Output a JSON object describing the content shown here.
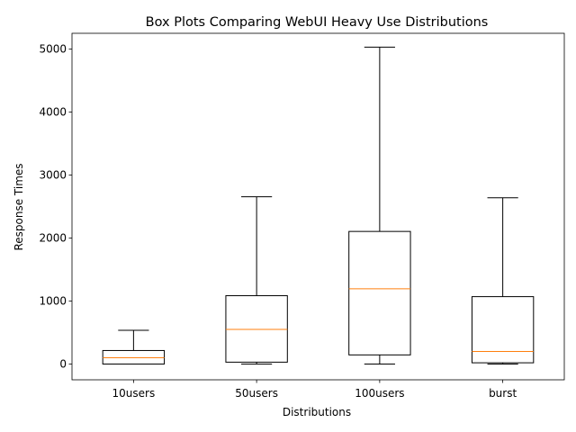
{
  "chart_data": {
    "type": "box",
    "title": "Box Plots Comparing WebUI Heavy Use Distributions",
    "xlabel": "Distributions",
    "ylabel": "Response Times",
    "ylim": [
      -250,
      5250
    ],
    "yticks": [
      0,
      1000,
      2000,
      3000,
      4000,
      5000
    ],
    "grid": false,
    "median_color": "#ff7f0e",
    "box_color": "#000000",
    "boxes": [
      {
        "label": "10users",
        "whisker_low": 0,
        "q1": 0,
        "median": 100,
        "q3": 215,
        "whisker_high": 535
      },
      {
        "label": "50users",
        "whisker_low": 0,
        "q1": 30,
        "median": 550,
        "q3": 1085,
        "whisker_high": 2655
      },
      {
        "label": "100users",
        "whisker_low": 0,
        "q1": 145,
        "median": 1195,
        "q3": 2105,
        "whisker_high": 5030
      },
      {
        "label": "burst",
        "whisker_low": 0,
        "q1": 20,
        "median": 200,
        "q3": 1070,
        "whisker_high": 2640
      }
    ]
  }
}
